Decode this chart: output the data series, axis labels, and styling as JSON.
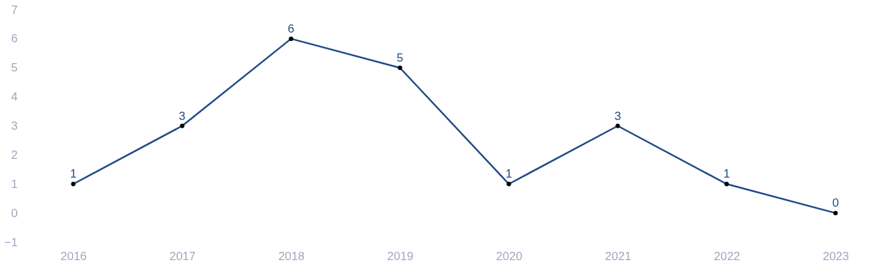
{
  "chart_data": {
    "type": "line",
    "categories": [
      "2016",
      "2017",
      "2018",
      "2019",
      "2020",
      "2021",
      "2022",
      "2023"
    ],
    "series": [
      {
        "color": "#1f4a87",
        "values": [
          1,
          3,
          6,
          5,
          1,
          3,
          1,
          0
        ]
      }
    ],
    "ylim": [
      -1,
      7
    ],
    "yticks": [
      -1,
      0,
      1,
      2,
      3,
      4,
      5,
      6,
      7
    ],
    "grid": false,
    "legend": false,
    "marker": "circle",
    "line_style": "solid",
    "data_labels": true
  }
}
